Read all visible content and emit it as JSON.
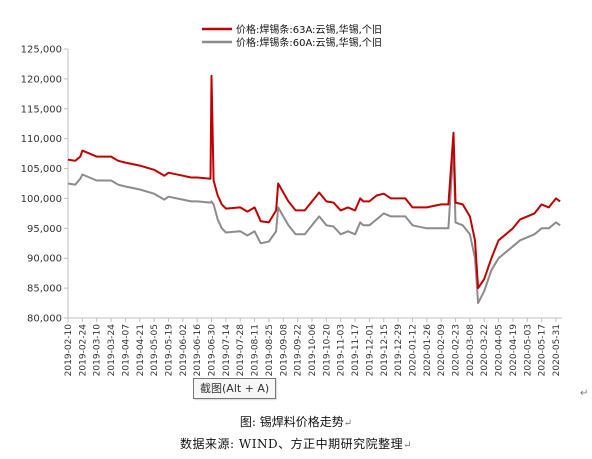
{
  "chart_data": {
    "type": "line",
    "ylim": [
      80000,
      125000
    ],
    "yticks": [
      "80,000",
      "85,000",
      "90,000",
      "95,000",
      "100,000",
      "105,000",
      "110,000",
      "115,000",
      "120,000",
      "125,000"
    ],
    "xticks": [
      "2019-02-10",
      "2019-02-24",
      "2019-03-10",
      "2019-03-24",
      "2019-04-07",
      "2019-04-21",
      "2019-05-05",
      "2019-05-19",
      "2019-06-02",
      "2019-06-16",
      "2019-06-30",
      "2019-07-14",
      "2019-07-28",
      "2019-08-11",
      "2019-08-25",
      "2019-09-08",
      "2019-09-22",
      "2019-10-06",
      "2019-10-20",
      "2019-11-03",
      "2019-11-17",
      "2019-12-01",
      "2019-12-15",
      "2019-12-29",
      "2020-01-12",
      "2020-01-26",
      "2020-02-09",
      "2020-02-23",
      "2020-03-08",
      "2020-03-22",
      "2020-04-05",
      "2020-04-19",
      "2020-05-03",
      "2020-05-17",
      "2020-05-31"
    ],
    "legend_position": "top-center",
    "series": [
      {
        "name": "价格:焊锡条:63A:云锡,华锡,个旧",
        "color": "#c00000",
        "points": [
          [
            "2019-02-10",
            106500
          ],
          [
            "2019-02-17",
            106300
          ],
          [
            "2019-02-22",
            107000
          ],
          [
            "2019-02-24",
            108000
          ],
          [
            "2019-03-03",
            107500
          ],
          [
            "2019-03-10",
            107000
          ],
          [
            "2019-03-24",
            107000
          ],
          [
            "2019-03-31",
            106300
          ],
          [
            "2019-04-07",
            106000
          ],
          [
            "2019-04-21",
            105500
          ],
          [
            "2019-05-05",
            104800
          ],
          [
            "2019-05-15",
            103800
          ],
          [
            "2019-05-19",
            104300
          ],
          [
            "2019-06-02",
            103800
          ],
          [
            "2019-06-10",
            103500
          ],
          [
            "2019-06-16",
            103500
          ],
          [
            "2019-06-29",
            103300
          ],
          [
            "2019-06-30",
            120500
          ],
          [
            "2019-07-02",
            103000
          ],
          [
            "2019-07-06",
            100500
          ],
          [
            "2019-07-10",
            99000
          ],
          [
            "2019-07-14",
            98300
          ],
          [
            "2019-07-28",
            98500
          ],
          [
            "2019-08-04",
            97800
          ],
          [
            "2019-08-11",
            98500
          ],
          [
            "2019-08-17",
            96200
          ],
          [
            "2019-08-25",
            96000
          ],
          [
            "2019-09-01",
            98000
          ],
          [
            "2019-09-03",
            102500
          ],
          [
            "2019-09-08",
            101000
          ],
          [
            "2019-09-13",
            99500
          ],
          [
            "2019-09-20",
            98000
          ],
          [
            "2019-09-29",
            98000
          ],
          [
            "2019-10-06",
            99500
          ],
          [
            "2019-10-13",
            101000
          ],
          [
            "2019-10-20",
            99500
          ],
          [
            "2019-10-27",
            99300
          ],
          [
            "2019-11-03",
            98000
          ],
          [
            "2019-11-10",
            98500
          ],
          [
            "2019-11-17",
            98000
          ],
          [
            "2019-11-22",
            100000
          ],
          [
            "2019-11-25",
            99500
          ],
          [
            "2019-12-01",
            99500
          ],
          [
            "2019-12-08",
            100500
          ],
          [
            "2019-12-15",
            100800
          ],
          [
            "2019-12-22",
            100000
          ],
          [
            "2019-12-29",
            100000
          ],
          [
            "2020-01-05",
            100000
          ],
          [
            "2020-01-12",
            98500
          ],
          [
            "2020-01-26",
            98500
          ],
          [
            "2020-02-09",
            99000
          ],
          [
            "2020-02-16",
            99000
          ],
          [
            "2020-02-21",
            111000
          ],
          [
            "2020-02-23",
            99300
          ],
          [
            "2020-03-01",
            99000
          ],
          [
            "2020-03-08",
            97000
          ],
          [
            "2020-03-13",
            93000
          ],
          [
            "2020-03-16",
            85000
          ],
          [
            "2020-03-22",
            86500
          ],
          [
            "2020-03-29",
            90000
          ],
          [
            "2020-04-05",
            93000
          ],
          [
            "2020-04-12",
            94000
          ],
          [
            "2020-04-19",
            95000
          ],
          [
            "2020-04-26",
            96500
          ],
          [
            "2020-05-03",
            97000
          ],
          [
            "2020-05-10",
            97500
          ],
          [
            "2020-05-17",
            99000
          ],
          [
            "2020-05-24",
            98500
          ],
          [
            "2020-05-31",
            100000
          ],
          [
            "2020-06-04",
            99500
          ]
        ]
      },
      {
        "name": "价格:焊锡条:60A:云锡,华锡,个旧",
        "color": "#8c8c8c",
        "points": [
          [
            "2019-02-10",
            102500
          ],
          [
            "2019-02-17",
            102300
          ],
          [
            "2019-02-22",
            103300
          ],
          [
            "2019-02-24",
            104000
          ],
          [
            "2019-03-03",
            103500
          ],
          [
            "2019-03-10",
            103000
          ],
          [
            "2019-03-24",
            103000
          ],
          [
            "2019-03-31",
            102300
          ],
          [
            "2019-04-07",
            102000
          ],
          [
            "2019-04-21",
            101500
          ],
          [
            "2019-05-05",
            100800
          ],
          [
            "2019-05-15",
            99800
          ],
          [
            "2019-05-19",
            100300
          ],
          [
            "2019-06-02",
            99800
          ],
          [
            "2019-06-10",
            99500
          ],
          [
            "2019-06-16",
            99500
          ],
          [
            "2019-06-29",
            99300
          ],
          [
            "2019-06-30",
            99500
          ],
          [
            "2019-07-02",
            99000
          ],
          [
            "2019-07-06",
            96500
          ],
          [
            "2019-07-10",
            95000
          ],
          [
            "2019-07-14",
            94300
          ],
          [
            "2019-07-28",
            94500
          ],
          [
            "2019-08-04",
            93800
          ],
          [
            "2019-08-11",
            94500
          ],
          [
            "2019-08-17",
            92500
          ],
          [
            "2019-08-25",
            92800
          ],
          [
            "2019-09-01",
            94500
          ],
          [
            "2019-09-03",
            98500
          ],
          [
            "2019-09-08",
            97000
          ],
          [
            "2019-09-13",
            95500
          ],
          [
            "2019-09-20",
            94000
          ],
          [
            "2019-09-29",
            94000
          ],
          [
            "2019-10-06",
            95500
          ],
          [
            "2019-10-13",
            97000
          ],
          [
            "2019-10-20",
            95500
          ],
          [
            "2019-10-27",
            95300
          ],
          [
            "2019-11-03",
            94000
          ],
          [
            "2019-11-10",
            94500
          ],
          [
            "2019-11-17",
            94000
          ],
          [
            "2019-11-22",
            96000
          ],
          [
            "2019-11-25",
            95500
          ],
          [
            "2019-12-01",
            95500
          ],
          [
            "2019-12-08",
            96500
          ],
          [
            "2019-12-15",
            97500
          ],
          [
            "2019-12-22",
            97000
          ],
          [
            "2019-12-29",
            97000
          ],
          [
            "2020-01-05",
            97000
          ],
          [
            "2020-01-12",
            95500
          ],
          [
            "2020-01-26",
            95000
          ],
          [
            "2020-02-09",
            95000
          ],
          [
            "2020-02-16",
            95000
          ],
          [
            "2020-02-21",
            108500
          ],
          [
            "2020-02-23",
            96000
          ],
          [
            "2020-03-01",
            95500
          ],
          [
            "2020-03-08",
            94000
          ],
          [
            "2020-03-13",
            90000
          ],
          [
            "2020-03-16",
            82500
          ],
          [
            "2020-03-22",
            84500
          ],
          [
            "2020-03-29",
            88000
          ],
          [
            "2020-04-05",
            90000
          ],
          [
            "2020-04-12",
            91000
          ],
          [
            "2020-04-19",
            92000
          ],
          [
            "2020-04-26",
            93000
          ],
          [
            "2020-05-03",
            93500
          ],
          [
            "2020-05-10",
            94000
          ],
          [
            "2020-05-17",
            95000
          ],
          [
            "2020-05-24",
            95000
          ],
          [
            "2020-05-31",
            96000
          ],
          [
            "2020-06-04",
            95500
          ]
        ]
      }
    ]
  },
  "tooltip": {
    "text": "截图(Alt + A)"
  },
  "caption": {
    "title": "图: 锡焊料价格走势",
    "source": "数据来源: WIND、方正中期研究院整理"
  }
}
